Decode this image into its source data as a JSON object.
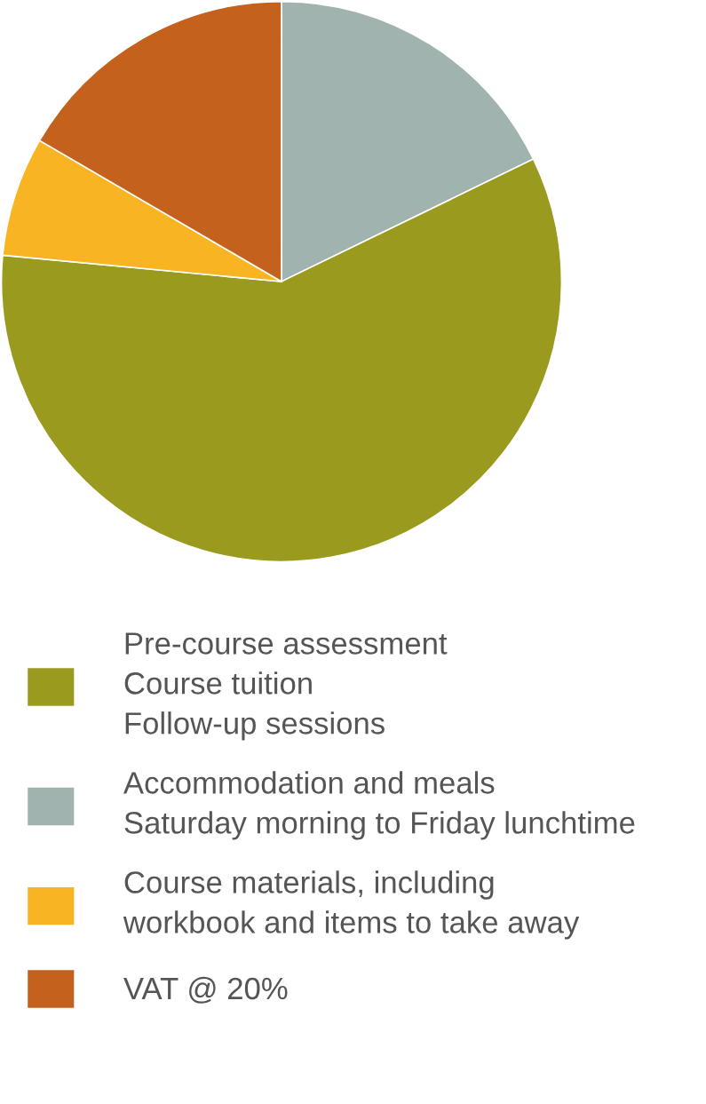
{
  "chart_data": {
    "type": "pie",
    "categories": [
      "Accommodation and meals\nSaturday morning to Friday lunchtime",
      "Pre-course assessment\nCourse tuition\nFollow-up sessions",
      "Course materials, including\nworkbook and items to take away",
      "VAT @ 20%"
    ],
    "values": [
      17.8,
      58.7,
      6.9,
      16.6
    ],
    "colors": [
      "#a0b3ae",
      "#9a9a1f",
      "#f9b424",
      "#c4621d"
    ],
    "legend": "bottom"
  }
}
